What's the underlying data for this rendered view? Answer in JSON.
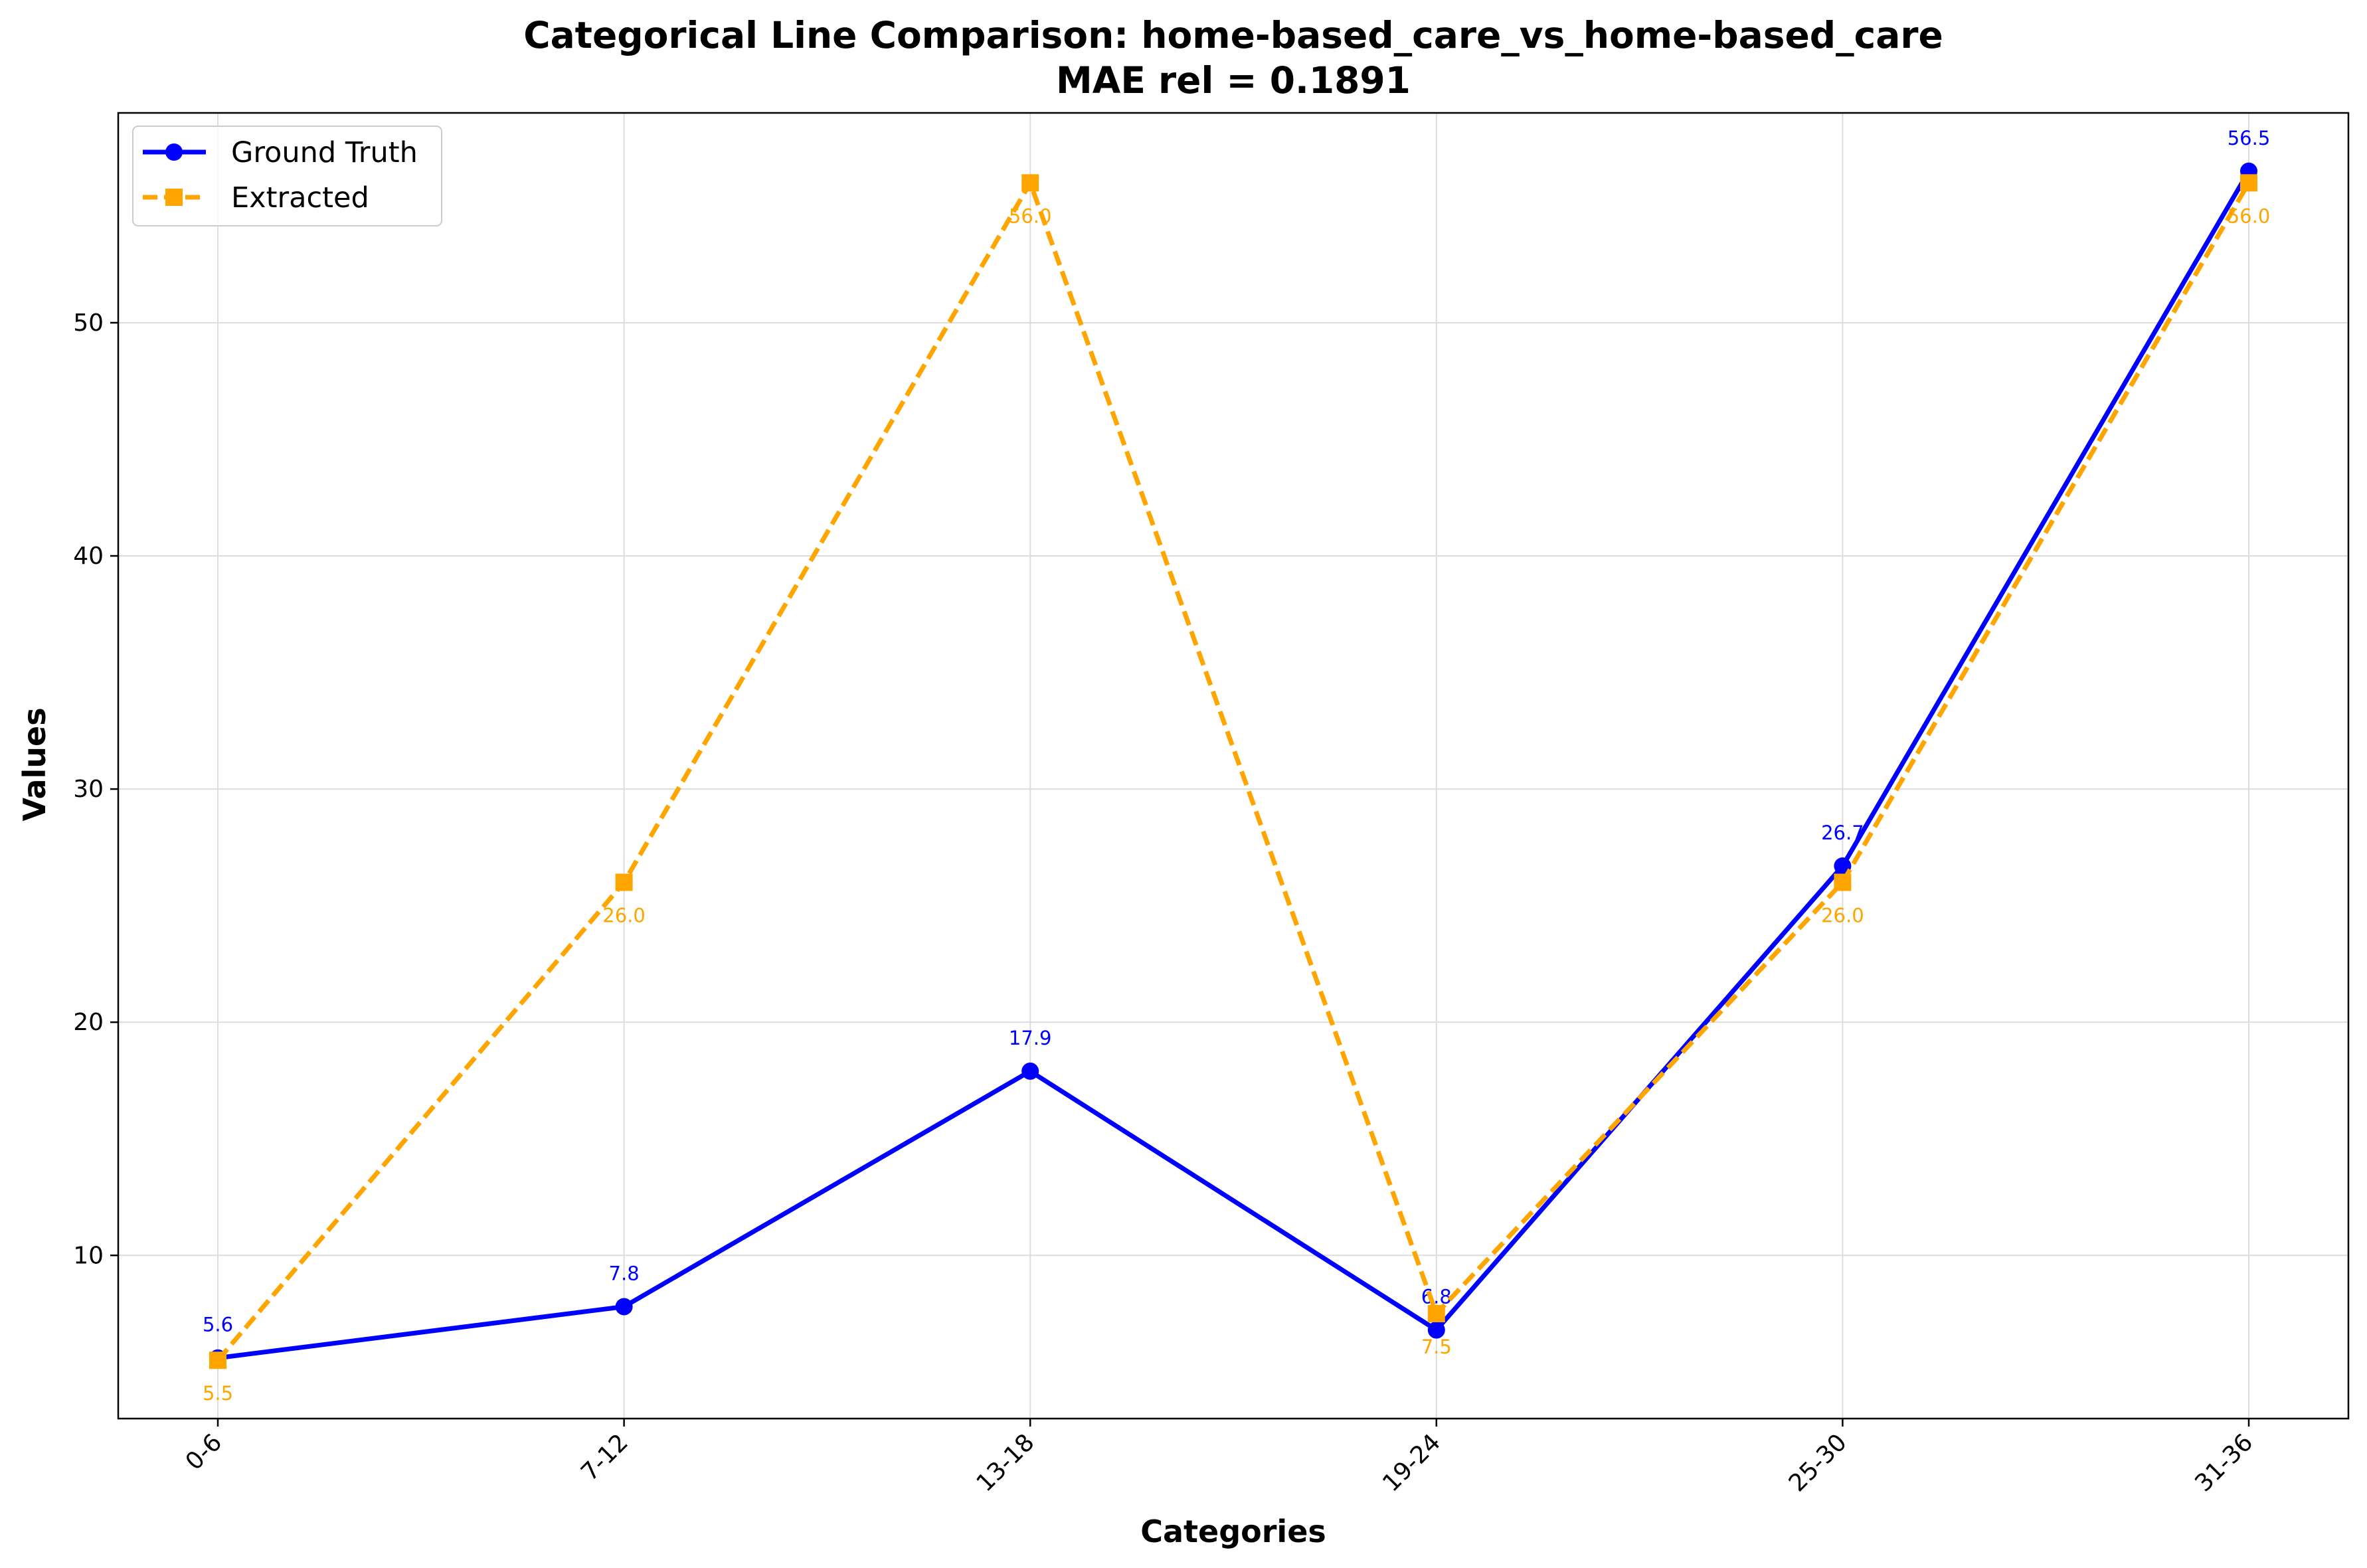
{
  "chart_data": {
    "type": "line",
    "title": "Categorical Line Comparison: home-based_care_vs_home-based_care",
    "subtitle": "MAE rel = 0.1891",
    "xlabel": "Categories",
    "ylabel": "Values",
    "categories": [
      "0-6",
      "7-12",
      "13-18",
      "19-24",
      "25-30",
      "31-36"
    ],
    "ylim": [
      3.0,
      59.0
    ],
    "yticks": [
      10,
      20,
      30,
      40,
      50
    ],
    "grid": true,
    "legend_position": "top-left",
    "series": [
      {
        "name": "Ground Truth",
        "values": [
          5.6,
          7.8,
          17.9,
          6.8,
          26.7,
          56.5
        ],
        "labels": [
          "5.6",
          "7.8",
          "17.9",
          "6.8",
          "26.7",
          "56.5"
        ],
        "color": "#0000ff",
        "line_style": "solid",
        "marker": "circle",
        "label_side": "above"
      },
      {
        "name": "Extracted",
        "values": [
          5.5,
          26.0,
          56.0,
          7.5,
          26.0,
          56.0
        ],
        "labels": [
          "5.5",
          "26.0",
          "56.0",
          "7.5",
          "26.0",
          "56.0"
        ],
        "color": "#ffa500",
        "line_style": "dashed",
        "marker": "square",
        "label_side": "below"
      }
    ]
  }
}
